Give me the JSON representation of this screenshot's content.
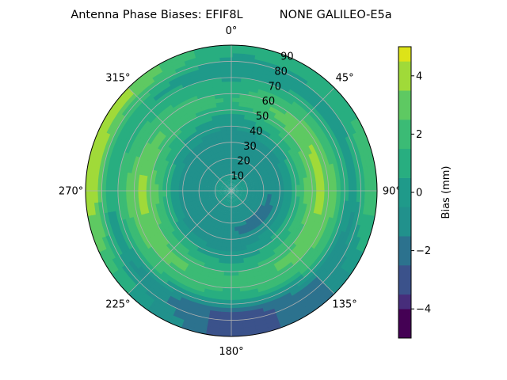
{
  "chart_data": {
    "type": "heatmap",
    "projection": "polar",
    "title": "Antenna Phase Biases: EFIF8L          NONE GALILEO-E5a",
    "azimuth_ticks": [
      {
        "deg": 0,
        "label": "0°"
      },
      {
        "deg": 45,
        "label": "45°"
      },
      {
        "deg": 90,
        "label": "90°"
      },
      {
        "deg": 135,
        "label": "135°"
      },
      {
        "deg": 180,
        "label": "180°"
      },
      {
        "deg": 225,
        "label": "225°"
      },
      {
        "deg": 270,
        "label": "270°"
      },
      {
        "deg": 315,
        "label": "315°"
      }
    ],
    "radial_ticks": [
      10,
      20,
      30,
      40,
      50,
      60,
      70,
      80,
      90
    ],
    "radial_range": [
      0,
      90
    ],
    "azimuth_zero": "top",
    "azimuth_direction": "clockwise",
    "grid": true,
    "colorbar": {
      "label": "Bias (mm)",
      "range": [
        -5,
        5
      ],
      "ticks": [
        -4,
        -2,
        0,
        2,
        4
      ],
      "levels": [
        {
          "lo": -5.0,
          "hi": -4.0,
          "color": "#440154"
        },
        {
          "lo": -4.0,
          "hi": -3.5,
          "color": "#472d7b"
        },
        {
          "lo": -3.5,
          "hi": -2.5,
          "color": "#3b528b"
        },
        {
          "lo": -2.5,
          "hi": -1.5,
          "color": "#2c728e"
        },
        {
          "lo": -1.5,
          "hi": -0.5,
          "color": "#21918c"
        },
        {
          "lo": -0.5,
          "hi": 0.5,
          "color": "#1f9a8a"
        },
        {
          "lo": 0.5,
          "hi": 1.5,
          "color": "#28ae80"
        },
        {
          "lo": 1.5,
          "hi": 2.5,
          "color": "#3bbb75"
        },
        {
          "lo": 2.5,
          "hi": 3.5,
          "color": "#5ec962"
        },
        {
          "lo": 3.5,
          "hi": 4.5,
          "color": "#a0da39"
        },
        {
          "lo": 4.5,
          "hi": 5.0,
          "color": "#dde318"
        }
      ]
    },
    "bias_field_mm": [
      {
        "zenith": 5,
        "by_azimuth_step_45": [
          0.0,
          0.0,
          0.0,
          0.0,
          0.0,
          0.0,
          0.0,
          0.0
        ]
      },
      {
        "zenith": 15,
        "by_azimuth_step_45": [
          -1.0,
          -1.0,
          -1.0,
          -1.0,
          -1.0,
          -1.0,
          -1.0,
          -1.0
        ]
      },
      {
        "zenith": 25,
        "by_azimuth_step_45": [
          -1.5,
          -1.5,
          -1.5,
          -2.0,
          -1.5,
          -1.5,
          -1.5,
          -1.5
        ]
      },
      {
        "zenith": 35,
        "by_azimuth_step_45": [
          -1.0,
          -0.5,
          0.0,
          0.0,
          -1.0,
          -0.5,
          0.0,
          -0.5
        ]
      },
      {
        "zenith": 45,
        "by_azimuth_step_45": [
          0.0,
          1.5,
          2.5,
          1.5,
          0.5,
          1.5,
          2.5,
          1.0
        ]
      },
      {
        "zenith": 55,
        "by_azimuth_step_45": [
          1.5,
          3.5,
          4.0,
          3.0,
          2.0,
          3.0,
          4.0,
          2.5
        ]
      },
      {
        "zenith": 65,
        "by_azimuth_step_45": [
          1.0,
          2.0,
          2.5,
          2.0,
          1.0,
          2.0,
          2.5,
          1.5
        ]
      },
      {
        "zenith": 75,
        "by_azimuth_step_45": [
          -0.5,
          0.0,
          -0.5,
          -1.5,
          -3.0,
          -1.0,
          0.5,
          0.5
        ]
      },
      {
        "zenith": 85,
        "by_azimuth_step_45": [
          0.5,
          1.0,
          2.5,
          -1.5,
          -3.5,
          0.5,
          4.5,
          3.5
        ]
      }
    ]
  }
}
